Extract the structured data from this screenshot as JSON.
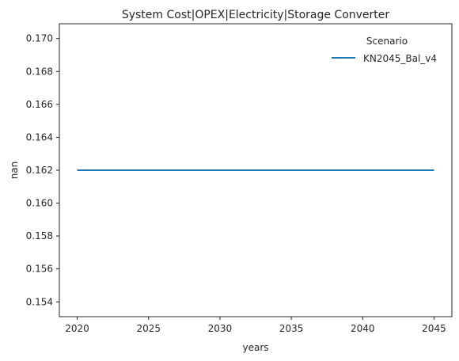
{
  "chart_data": {
    "type": "line",
    "title": "System Cost|OPEX|Electricity|Storage Converter",
    "xlabel": "years",
    "ylabel": "nan",
    "x": [
      2020,
      2025,
      2030,
      2035,
      2040,
      2045
    ],
    "xticks": [
      "2020",
      "2025",
      "2030",
      "2035",
      "2040",
      "2045"
    ],
    "yticks": [
      "0.154",
      "0.156",
      "0.158",
      "0.160",
      "0.162",
      "0.164",
      "0.166",
      "0.168",
      "0.170"
    ],
    "xlim": [
      2018.75,
      2046.25
    ],
    "ylim": [
      0.1531,
      0.1709
    ],
    "grid": false,
    "legend": {
      "title": "Scenario",
      "placement": "top-right"
    },
    "series": [
      {
        "name": "KN2045_Bal_v4",
        "color": "#1f77b4",
        "values": [
          0.162,
          0.162,
          0.162,
          0.162,
          0.162,
          0.162
        ]
      }
    ]
  }
}
